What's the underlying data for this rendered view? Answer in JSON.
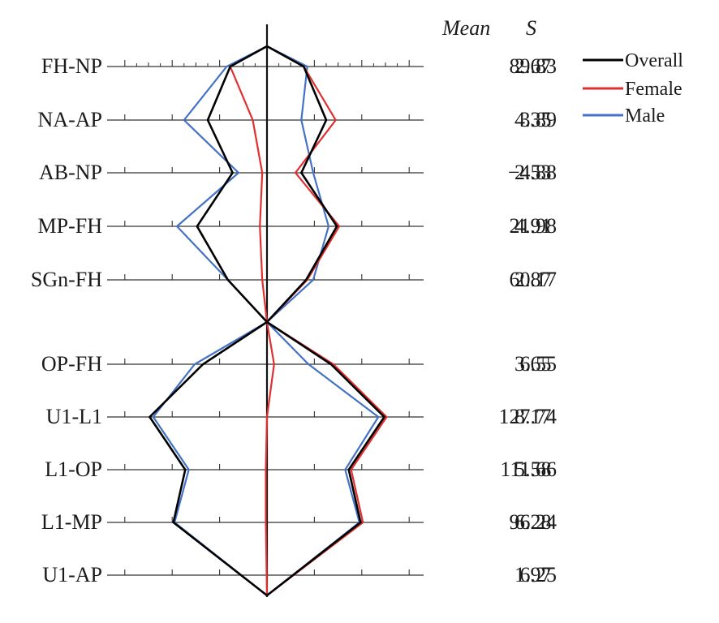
{
  "chart_data": {
    "type": "line",
    "header": {
      "mean": "Mean",
      "sd": "S"
    },
    "rows": [
      {
        "label": "FH-NP",
        "mean": "89.83",
        "sd": "2.67"
      },
      {
        "label": "NA-AP",
        "mean": "3.89",
        "sd": "4.35"
      },
      {
        "label": "AB-NP",
        "mean": "−4.88",
        "sd": "2.53"
      },
      {
        "label": "MP-FH",
        "mean": "21.98",
        "sd": "4.91"
      },
      {
        "label": "SGn-FH",
        "mean": "60.17",
        "sd": "2.87"
      },
      {
        "label": "OP-FH",
        "mean": "6.55",
        "sd": "3.65"
      },
      {
        "label": "U1-L1",
        "mean": "127.74",
        "sd": "8.17"
      },
      {
        "label": "L1-OP",
        "mean": "111.66",
        "sd": "5.58"
      },
      {
        "label": "L1-MP",
        "mean": "96.24",
        "sd": "6.28"
      },
      {
        "label": "U1-AP",
        "mean": "6.25",
        "sd": "1.97"
      }
    ],
    "legend": {
      "position": "top-right"
    },
    "series": [
      {
        "name": "Overall",
        "color": "#000000",
        "left": [
          -1.55,
          -2.5,
          -1.45,
          -2.95,
          -1.65,
          -2.7,
          -4.95,
          -3.45,
          -3.95,
          0
        ],
        "right": [
          1.55,
          2.5,
          1.45,
          2.95,
          1.65,
          2.7,
          4.95,
          3.45,
          3.95,
          0
        ]
      },
      {
        "name": "Female",
        "color": "#e03030",
        "left": [
          -1.55,
          -0.6,
          -0.2,
          -0.3,
          -0.2,
          0.3,
          0,
          -0.05,
          -0.05,
          0
        ],
        "right": [
          1.55,
          2.9,
          1.2,
          3.05,
          1.7,
          2.8,
          5.05,
          3.55,
          4.05,
          0
        ]
      },
      {
        "name": "Male",
        "color": "#4472c4",
        "left": [
          -1.7,
          -3.5,
          -1.2,
          -3.8,
          -1.65,
          -3.05,
          -4.8,
          -3.3,
          -3.9,
          0
        ],
        "right": [
          1.7,
          1.45,
          1.95,
          2.6,
          1.95,
          1.75,
          4.7,
          3.3,
          3.9,
          0
        ]
      }
    ]
  }
}
